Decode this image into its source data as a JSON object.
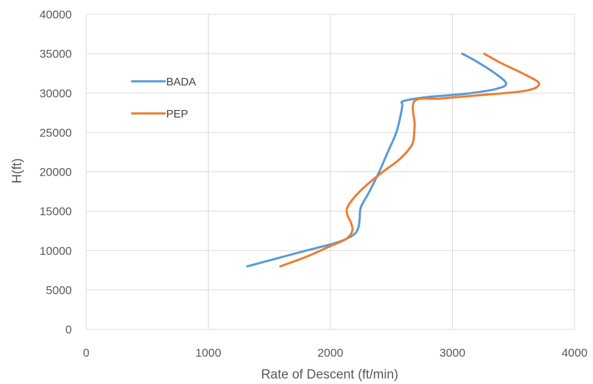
{
  "chart_data": {
    "type": "line",
    "xlabel": "Rate of Descent (ft/min)",
    "ylabel": "H(ft)",
    "xlim": [
      0,
      4000
    ],
    "ylim": [
      0,
      40000
    ],
    "x_ticks": [
      0,
      1000,
      2000,
      3000,
      4000
    ],
    "y_ticks": [
      0,
      5000,
      10000,
      15000,
      20000,
      25000,
      30000,
      35000,
      40000
    ],
    "x_tick_labels": [
      "0",
      "1000",
      "2000",
      "3000",
      "4000"
    ],
    "y_tick_labels": [
      "0",
      "5000",
      "10000",
      "15000",
      "20000",
      "25000",
      "30000",
      "35000",
      "40000"
    ],
    "grid": true,
    "legend_position": "left-upper",
    "series": [
      {
        "name": "BADA",
        "color": "#5b9bd5",
        "points": [
          [
            1320,
            8000
          ],
          [
            1560,
            9000
          ],
          [
            1800,
            10000
          ],
          [
            2050,
            11000
          ],
          [
            2190,
            12000
          ],
          [
            2230,
            13000
          ],
          [
            2240,
            14000
          ],
          [
            2250,
            15500
          ],
          [
            2320,
            17500
          ],
          [
            2400,
            20000
          ],
          [
            2470,
            22500
          ],
          [
            2540,
            25000
          ],
          [
            2580,
            27500
          ],
          [
            2590,
            28500
          ],
          [
            2600,
            29000
          ],
          [
            2800,
            29500
          ],
          [
            3100,
            29900
          ],
          [
            3350,
            30500
          ],
          [
            3440,
            31200
          ],
          [
            3350,
            32500
          ],
          [
            3200,
            34000
          ],
          [
            3080,
            35000
          ]
        ]
      },
      {
        "name": "PEP",
        "color": "#ed7d31",
        "points": [
          [
            1590,
            8000
          ],
          [
            1800,
            9200
          ],
          [
            1990,
            10500
          ],
          [
            2130,
            11500
          ],
          [
            2180,
            12500
          ],
          [
            2170,
            13500
          ],
          [
            2140,
            14500
          ],
          [
            2140,
            15500
          ],
          [
            2210,
            17000
          ],
          [
            2310,
            18500
          ],
          [
            2430,
            20000
          ],
          [
            2560,
            21500
          ],
          [
            2650,
            23000
          ],
          [
            2680,
            24000
          ],
          [
            2690,
            26000
          ],
          [
            2690,
            29000
          ],
          [
            2900,
            29300
          ],
          [
            3200,
            29700
          ],
          [
            3600,
            30300
          ],
          [
            3710,
            31200
          ],
          [
            3600,
            32300
          ],
          [
            3400,
            33800
          ],
          [
            3260,
            35000
          ]
        ]
      }
    ]
  }
}
